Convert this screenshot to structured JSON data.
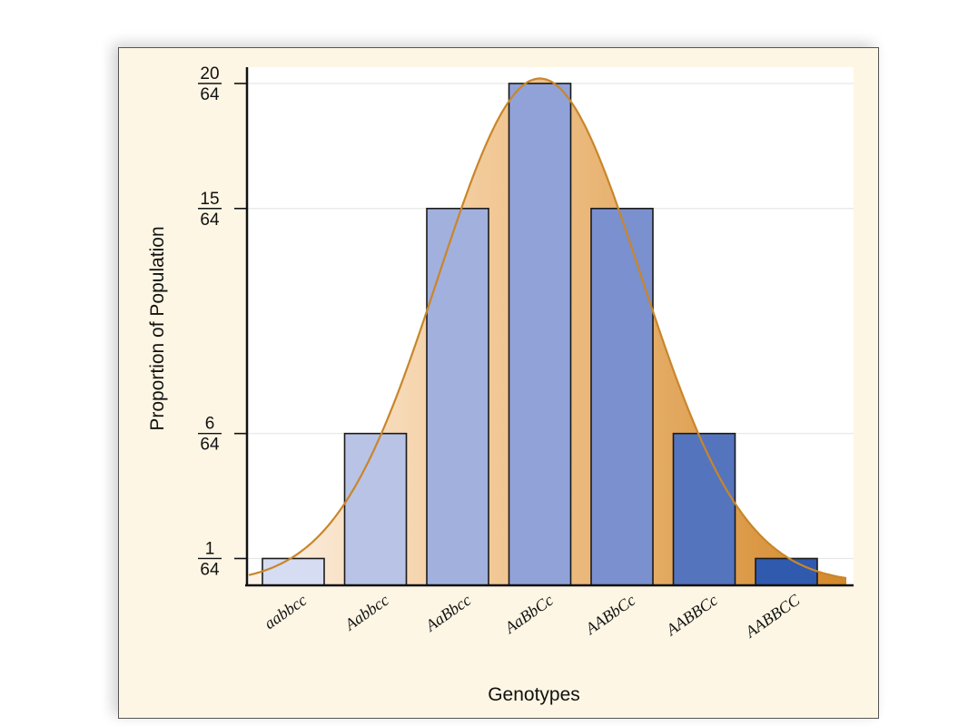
{
  "chart_data": {
    "type": "bar",
    "title": "",
    "xlabel": "Genotypes",
    "ylabel": "Proportion of Population",
    "categories": [
      "aabbcc",
      "Aabbcc",
      "AaBbcc",
      "AaBbCc",
      "AABbCc",
      "AABBCc",
      "AABBCC"
    ],
    "values": [
      1,
      6,
      15,
      20,
      15,
      6,
      1
    ],
    "value_denominator": 64,
    "yticks": [
      {
        "value": 1,
        "numerator": "1",
        "denominator": "64"
      },
      {
        "value": 6,
        "numerator": "6",
        "denominator": "64"
      },
      {
        "value": 15,
        "numerator": "15",
        "denominator": "64"
      },
      {
        "value": 20,
        "numerator": "20",
        "denominator": "64"
      }
    ],
    "ylim": [
      0.5,
      20
    ],
    "grid": true,
    "overlay": "normal distribution curve",
    "colors": {
      "background": "#fdf6e4",
      "bars": [
        "#d6dcf2",
        "#b8c3e6",
        "#a2b0de",
        "#91a2d9",
        "#7a90cf",
        "#5474bd",
        "#2f5aae"
      ],
      "curve_line": "#c8862a",
      "curve_fill_light": "#fbeede",
      "curve_fill_dark": "#d3882a",
      "grid": "#e6e6e6"
    }
  }
}
